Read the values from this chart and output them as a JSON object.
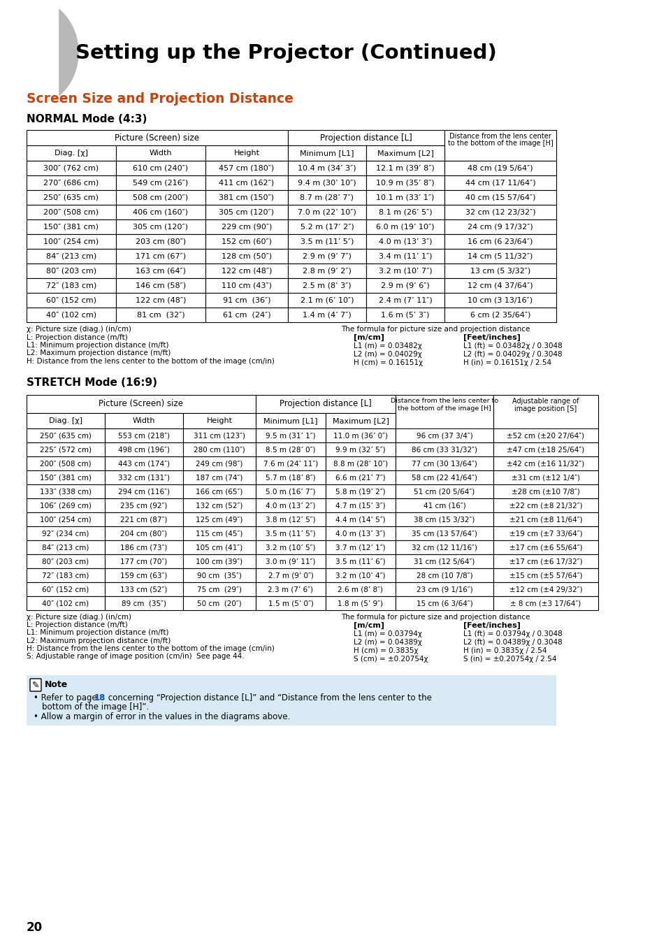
{
  "page_title": "Setting up the Projector (Continued)",
  "section_title": "Screen Size and Projection Distance",
  "normal_mode_title": "NORMAL Mode (4:3)",
  "stretch_mode_title": "STRETCH Mode (16:9)",
  "page_num": "20",
  "title_color": "#c8430a",
  "normal_table_data": [
    [
      "300″ (762 cm)",
      "610 cm (240″)",
      "457 cm (180″)",
      "10.4 m (34’ 3″)",
      "12.1 m (39’ 8″)",
      "48 cm (19 5/64″)"
    ],
    [
      "270″ (686 cm)",
      "549 cm (216″)",
      "411 cm (162″)",
      "9.4 m (30’ 10″)",
      "10.9 m (35’ 8″)",
      "44 cm (17 11/64″)"
    ],
    [
      "250″ (635 cm)",
      "508 cm (200″)",
      "381 cm (150″)",
      "8.7 m (28’ 7″)",
      "10.1 m (33’ 1″)",
      "40 cm (15 57/64″)"
    ],
    [
      "200″ (508 cm)",
      "406 cm (160″)",
      "305 cm (120″)",
      "7.0 m (22’ 10″)",
      "8.1 m (26’ 5″)",
      "32 cm (12 23/32″)"
    ],
    [
      "150″ (381 cm)",
      "305 cm (120″)",
      "229 cm (90″)",
      "5.2 m (17’ 2″)",
      "6.0 m (19’ 10″)",
      "24 cm (9 17/32″)"
    ],
    [
      "100″ (254 cm)",
      "203 cm (80″)",
      "152 cm (60″)",
      "3.5 m (11’ 5″)",
      "4.0 m (13’ 3″)",
      "16 cm (6 23/64″)"
    ],
    [
      "84″ (213 cm)",
      "171 cm (67″)",
      "128 cm (50″)",
      "2.9 m (9’ 7″)",
      "3.4 m (11’ 1″)",
      "14 cm (5 11/32″)"
    ],
    [
      "80″ (203 cm)",
      "163 cm (64″)",
      "122 cm (48″)",
      "2.8 m (9’ 2″)",
      "3.2 m (10’ 7″)",
      "13 cm (5 3/32″)"
    ],
    [
      "72″ (183 cm)",
      "146 cm (58″)",
      "110 cm (43″)",
      "2.5 m (8’ 3″)",
      "2.9 m (9’ 6″)",
      "12 cm (4 37/64″)"
    ],
    [
      "60″ (152 cm)",
      "122 cm (48″)",
      "91 cm  (36″)",
      "2.1 m (6’ 10″)",
      "2.4 m (7’ 11″)",
      "10 cm (3 13/16″)"
    ],
    [
      "40″ (102 cm)",
      "81 cm  (32″)",
      "61 cm  (24″)",
      "1.4 m (4’ 7″)",
      "1.6 m (5’ 3″)",
      "6 cm (2 35/64″)"
    ]
  ],
  "normal_footnote_left": [
    "χ: Picture size (diag.) (in/cm)",
    "L: Projection distance (m/ft)",
    "L1: Minimum projection distance (m/ft)",
    "L2: Maximum projection distance (m/ft)",
    "H: Distance from the lens center to the bottom of the image (cm/in)"
  ],
  "normal_footnote_right_title": "The formula for picture size and projection distance",
  "normal_footnote_right": [
    [
      "[m/cm]",
      "[Feet/inches]"
    ],
    [
      "L1 (m) = 0.03482χ",
      "L1 (ft) = 0.03482χ / 0.3048"
    ],
    [
      "L2 (m) = 0.04029χ",
      "L2 (ft) = 0.04029χ / 0.3048"
    ],
    [
      "H (cm) = 0.16151χ",
      "H (in) = 0.16151χ / 2.54"
    ]
  ],
  "stretch_table_data": [
    [
      "250″ (635 cm)",
      "553 cm (218″)",
      "311 cm (123″)",
      "9.5 m (31’ 1″)",
      "11.0 m (36’ 0″)",
      "96 cm (37 3/4″)",
      "±52 cm (±20 27/64″)"
    ],
    [
      "225″ (572 cm)",
      "498 cm (196″)",
      "280 cm (110″)",
      "8.5 m (28’ 0″)",
      "9.9 m (32’ 5″)",
      "86 cm (33 31/32″)",
      "±47 cm (±18 25/64″)"
    ],
    [
      "200″ (508 cm)",
      "443 cm (174″)",
      "249 cm (98″)",
      "7.6 m (24’ 11″)",
      "8.8 m (28’ 10″)",
      "77 cm (30 13/64″)",
      "±42 cm (±16 11/32″)"
    ],
    [
      "150″ (381 cm)",
      "332 cm (131″)",
      "187 cm (74″)",
      "5.7 m (18’ 8″)",
      "6.6 m (21’ 7″)",
      "58 cm (22 41/64″)",
      "±31 cm (±12 1/4″)"
    ],
    [
      "133″ (338 cm)",
      "294 cm (116″)",
      "166 cm (65″)",
      "5.0 m (16’ 7″)",
      "5.8 m (19’ 2″)",
      "51 cm (20 5/64″)",
      "±28 cm (±10 7/8″)"
    ],
    [
      "106″ (269 cm)",
      "235 cm (92″)",
      "132 cm (52″)",
      "4.0 m (13’ 2″)",
      "4.7 m (15’ 3″)",
      "41 cm (16″)",
      "±22 cm (±8 21/32″)"
    ],
    [
      "100″ (254 cm)",
      "221 cm (87″)",
      "125 cm (49″)",
      "3.8 m (12’ 5″)",
      "4.4 m (14’ 5″)",
      "38 cm (15 3/32″)",
      "±21 cm (±8 11/64″)"
    ],
    [
      "92″ (234 cm)",
      "204 cm (80″)",
      "115 cm (45″)",
      "3.5 m (11’ 5″)",
      "4.0 m (13’ 3″)",
      "35 cm (13 57/64″)",
      "±19 cm (±7 33/64″)"
    ],
    [
      "84″ (213 cm)",
      "186 cm (73″)",
      "105 cm (41″)",
      "3.2 m (10’ 5″)",
      "3.7 m (12’ 1″)",
      "32 cm (12 11/16″)",
      "±17 cm (±6 55/64″)"
    ],
    [
      "80″ (203 cm)",
      "177 cm (70″)",
      "100 cm (39″)",
      "3.0 m (9’ 11″)",
      "3.5 m (11’ 6″)",
      "31 cm (12 5/64″)",
      "±17 cm (±6 17/32″)"
    ],
    [
      "72″ (183 cm)",
      "159 cm (63″)",
      "90 cm  (35″)",
      "2.7 m (9’ 0″)",
      "3.2 m (10’ 4″)",
      "28 cm (10 7/8″)",
      "±15 cm (±5 57/64″)"
    ],
    [
      "60″ (152 cm)",
      "133 cm (52″)",
      "75 cm  (29″)",
      "2.3 m (7’ 6″)",
      "2.6 m (8’ 8″)",
      "23 cm (9 1/16″)",
      "±12 cm (±4 29/32″)"
    ],
    [
      "40″ (102 cm)",
      "89 cm  (35″)",
      "50 cm  (20″)",
      "1.5 m (5’ 0″)",
      "1.8 m (5’ 9″)",
      "15 cm (6 3/64″)",
      "± 8 cm (±3 17/64″)"
    ]
  ],
  "stretch_footnote_left": [
    "χ: Picture size (diag.) (in/cm)",
    "L: Projection distance (m/ft)",
    "L1: Minimum projection distance (m/ft)",
    "L2: Maximum projection distance (m/ft)",
    "H: Distance from the lens center to the bottom of the image (cm/in)",
    "S: Adjustable range of image position (cm/in)  See page 44."
  ],
  "stretch_footnote_right_title": "The formula for picture size and projection distance",
  "stretch_footnote_right": [
    [
      "[m/cm]",
      "[Feet/inches]"
    ],
    [
      "L1 (m) = 0.03794χ",
      "L1 (ft) = 0.03794χ / 0.3048"
    ],
    [
      "L2 (m) = 0.04389χ",
      "L2 (ft) = 0.04389χ / 0.3048"
    ],
    [
      "H (cm) = 0.3835χ",
      "H (in) = 0.3835χ / 2.54"
    ],
    [
      "S (cm) = ±0.20754χ",
      "S (in) = ±0.20754χ / 2.54"
    ]
  ],
  "note_bg": "#daeaf5",
  "page_link_color": "#0055aa"
}
